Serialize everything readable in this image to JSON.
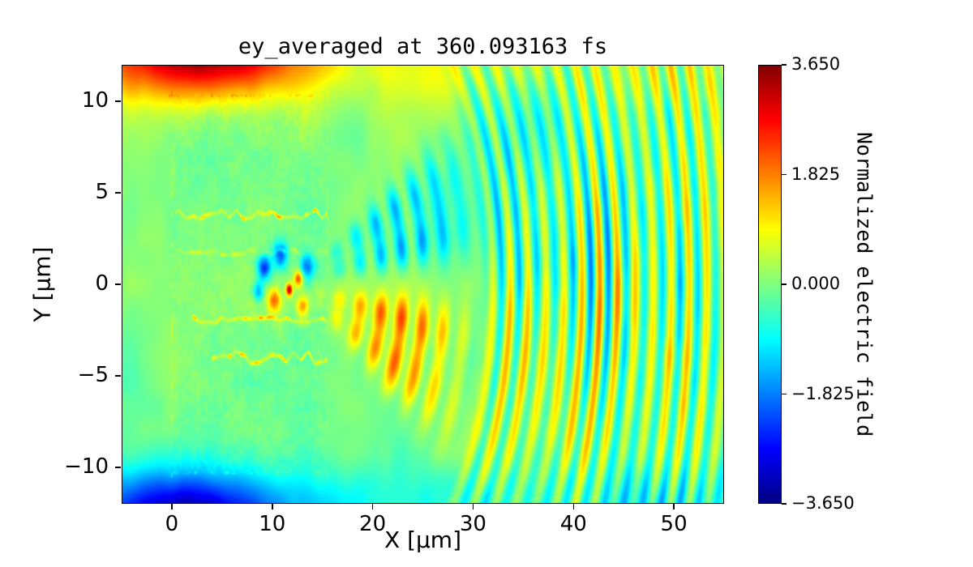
{
  "chart_data": {
    "type": "heatmap",
    "title": "ey_averaged at 360.093163 fs",
    "xlabel": "X [μm]",
    "ylabel": "Y [μm]",
    "colorbar_label": "Normalized electric field",
    "colormap": "jet",
    "xlim": [
      -5,
      55
    ],
    "ylim": [
      -12,
      12
    ],
    "clim": [
      -3.65,
      3.65
    ],
    "xticks": [
      {
        "value": 0,
        "label": "0"
      },
      {
        "value": 10,
        "label": "10"
      },
      {
        "value": 20,
        "label": "20"
      },
      {
        "value": 30,
        "label": "30"
      },
      {
        "value": 40,
        "label": "40"
      },
      {
        "value": 50,
        "label": "50"
      }
    ],
    "yticks": [
      {
        "value": 10,
        "label": "10"
      },
      {
        "value": 5,
        "label": "5"
      },
      {
        "value": 0,
        "label": "0"
      },
      {
        "value": -5,
        "label": "−5"
      },
      {
        "value": -10,
        "label": "−10"
      }
    ],
    "colorbar_ticks": [
      {
        "value": 3.65,
        "label": "3.650"
      },
      {
        "value": 1.825,
        "label": "1.825"
      },
      {
        "value": 0.0,
        "label": "0.000"
      },
      {
        "value": -1.825,
        "label": "−1.825"
      },
      {
        "value": -3.65,
        "label": "−3.650"
      }
    ],
    "render_params": {
      "noise": {
        "amp1": 0.3,
        "scale1": 0.22,
        "amp2": 0.12,
        "scale2": 0.75
      },
      "top_band": {
        "amp": 0.6,
        "y": 11.9,
        "sigma2": 5
      },
      "bottom_band": {
        "amp": -0.7,
        "y": -11.9,
        "sigma2": 4
      },
      "corner_blobs": [
        {
          "x": 3,
          "y": 13,
          "amp": 3.3,
          "sx2": 95,
          "sy2": 6.5
        },
        {
          "x": 1,
          "y": -13.2,
          "amp": -3.4,
          "sx2": 70,
          "sy2": 7
        }
      ],
      "slab": {
        "x0": 0,
        "x1": 15.5,
        "y0": -10.3,
        "y1": 10.3,
        "speckle": 0.13,
        "edge_amp": 0.8
      },
      "channel_lines": [
        {
          "y": 3.8,
          "x0": 0.3,
          "x1": 15.4,
          "amp": 1.9,
          "wave": 0.3
        },
        {
          "y": 1.75,
          "x0": 0.3,
          "x1": 15.4,
          "amp": 0.8,
          "wave": 0.2
        },
        {
          "y": -1.95,
          "x0": 2.0,
          "x1": 15.4,
          "amp": 1.7,
          "wave": 0.3
        },
        {
          "y": -4.0,
          "x0": 4.0,
          "x1": 15.4,
          "amp": 1.7,
          "wave": 0.35
        }
      ],
      "hot_spots": [
        {
          "x": 11.7,
          "y": -0.3,
          "amp": 3.2,
          "r2": 0.1
        },
        {
          "x": 12.6,
          "y": 0.3,
          "amp": 2.2,
          "r2": 0.18
        },
        {
          "x": 9.2,
          "y": 0.9,
          "amp": -2.6,
          "r2": 0.5
        },
        {
          "x": 10.8,
          "y": 1.6,
          "amp": -2.2,
          "r2": 0.6
        },
        {
          "x": 13.5,
          "y": 1.0,
          "amp": -1.8,
          "r2": 0.5
        },
        {
          "x": 10.2,
          "y": -0.9,
          "amp": 1.8,
          "r2": 0.4
        },
        {
          "x": 8.6,
          "y": -0.4,
          "amp": -1.6,
          "r2": 0.3
        },
        {
          "x": 13.0,
          "y": -1.2,
          "amp": 1.6,
          "r2": 0.35
        }
      ],
      "source": {
        "x": 12,
        "y": 0
      },
      "near_lobes": {
        "r_peak": 11,
        "r_sigma2": 42,
        "lambda": 2.1,
        "upper": {
          "angles": [
            0.17,
            0.38
          ],
          "widths": [
            0.01,
            0.016
          ],
          "amp": -1.75
        },
        "lower": {
          "angles": [
            -0.17,
            -0.4
          ],
          "widths": [
            0.012,
            0.02
          ],
          "amp": 1.95
        }
      },
      "far_fringes": {
        "r_start": 19.5,
        "lambda": 1.78,
        "amp": 1.05,
        "group_period": 9,
        "group_depth": 0.4,
        "angle_taper": {
          "floor": 0.45,
          "phi2": 0.35
        },
        "axis_boost": {
          "amp": 0.75,
          "phi2": 0.05,
          "r_center": 31,
          "r_sigma2": 55
        },
        "upper_blue_bias": {
          "amp": -0.5,
          "r_center": 24,
          "r_sigma2": 70
        }
      }
    }
  }
}
